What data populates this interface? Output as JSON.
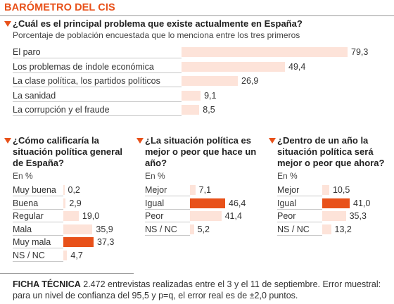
{
  "title": "BARÓMETRO DEL CIS",
  "colors": {
    "accent": "#e8511a",
    "bar_light": "#fde3d9"
  },
  "chart_data": [
    {
      "type": "bar",
      "question": "¿Cuál es el principal problema que existe actualmente en España?",
      "subtitle": "Porcentaje de población encuestada que lo menciona entre los tres primeros",
      "categories": [
        "El paro",
        "Los problemas de índole económica",
        "La clase política, los partidos políticos",
        "La sanidad",
        "La corrupción y el fraude"
      ],
      "values": [
        79.3,
        49.4,
        26.9,
        9.1,
        8.5
      ],
      "labels": [
        "79,3",
        "49,4",
        "26,9",
        "9,1",
        "8,5"
      ],
      "highlight": []
    },
    {
      "type": "bar",
      "question": "¿Cómo calificaría la situación política general de España?",
      "subtitle": "En %",
      "categories": [
        "Muy buena",
        "Buena",
        "Regular",
        "Mala",
        "Muy mala",
        "NS / NC"
      ],
      "values": [
        0.2,
        2.9,
        19.0,
        35.9,
        37.3,
        4.7
      ],
      "labels": [
        "0,2",
        "2,9",
        "19,0",
        "35,9",
        "37,3",
        "4,7"
      ],
      "highlight": [
        4
      ]
    },
    {
      "type": "bar",
      "question": "¿La situación política es mejor o peor que hace un año?",
      "subtitle": "En %",
      "categories": [
        "Mejor",
        "Igual",
        "Peor",
        "NS / NC"
      ],
      "values": [
        7.1,
        46.4,
        41.4,
        5.2
      ],
      "labels": [
        "7,1",
        "46,4",
        "41,4",
        "5,2"
      ],
      "highlight": [
        1
      ]
    },
    {
      "type": "bar",
      "question": "¿Dentro de un año la situación política será mejor o peor que ahora?",
      "subtitle": "En %",
      "categories": [
        "Mejor",
        "Igual",
        "Peor",
        "NS / NC"
      ],
      "values": [
        10.5,
        41.0,
        35.3,
        13.2
      ],
      "labels": [
        "10,5",
        "41,0",
        "35,3",
        "13,2"
      ],
      "highlight": [
        1
      ]
    }
  ],
  "footer": {
    "label": "FICHA TÉCNICA",
    "text": " 2.472 entrevistas realizadas entre el 3 y el 11 de septiembre. Error muestral: para un nivel de confianza del 95,5 y p=q, el error real es de ±2,0 puntos."
  }
}
